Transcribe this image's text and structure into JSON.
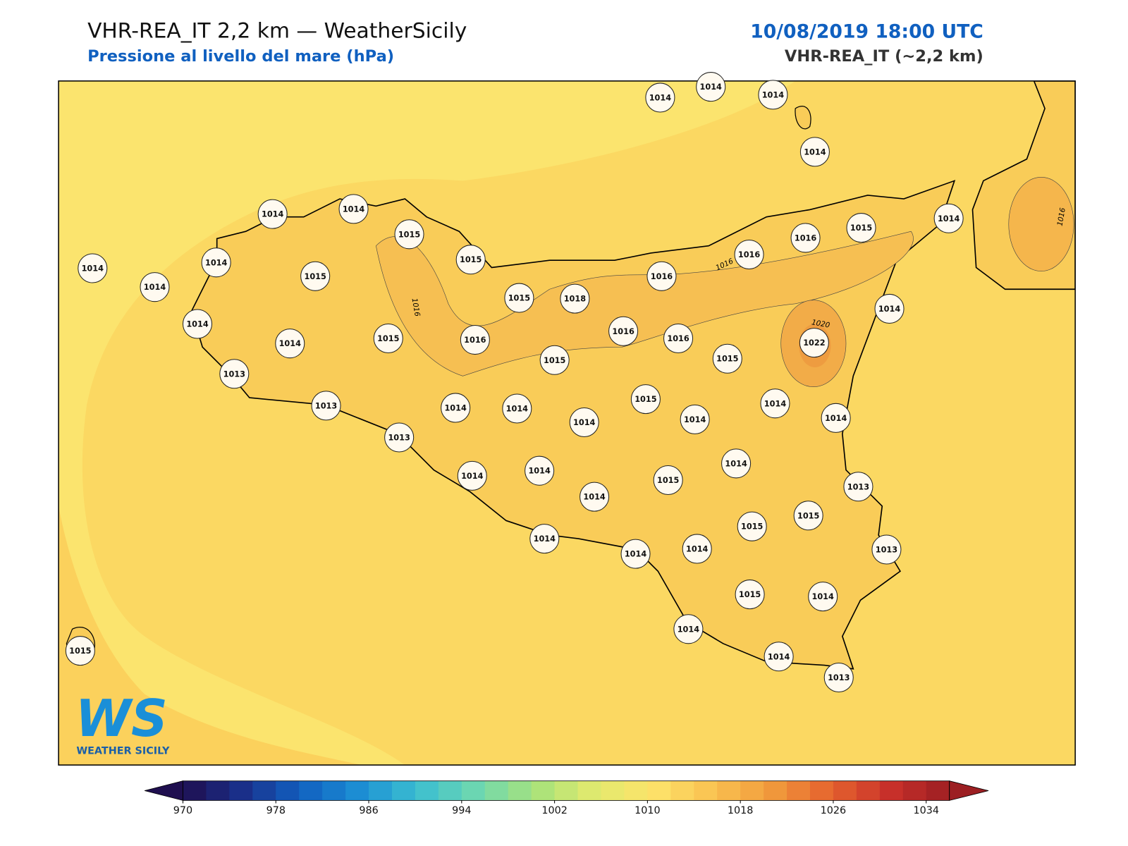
{
  "header": {
    "title": "VHR-REA_IT 2,2 km — WeatherSicily",
    "subtitle": "Pressione al livello del mare (hPa)",
    "datetime": "10/08/2019 18:00 UTC",
    "model": "VHR-REA_IT (~2,2 km)"
  },
  "stations": [
    1014,
    1014,
    1014,
    1014,
    1014,
    1014,
    1015,
    1015,
    1014,
    1014,
    1014,
    1015,
    1014,
    1014,
    1013,
    1015,
    1016,
    1015,
    1018,
    1016,
    1015,
    1016,
    1016,
    1016,
    1015,
    1014,
    1014,
    1016,
    1015,
    1022,
    1014,
    1014,
    1013,
    1013,
    1014,
    1014,
    1014,
    1015,
    1014,
    1014,
    1014,
    1014,
    1014,
    1015,
    1013,
    1015,
    1015,
    1013,
    1014,
    1014,
    1014,
    1015,
    1014,
    1014,
    1014,
    1013,
    1015
  ],
  "contour_labels": [
    1016,
    1016,
    1020,
    1016
  ],
  "colorbar": {
    "lim": [
      970,
      1036
    ],
    "ticks": [
      970,
      978,
      986,
      994,
      1002,
      1010,
      1018,
      1026,
      1034
    ],
    "colors": [
      "#1f0f4f",
      "#1a2f8a",
      "#1160c0",
      "#1c8fd4",
      "#3cbfd0",
      "#6fd8b0",
      "#a8e27a",
      "#e3ea6e",
      "#fde36a",
      "#f9c150",
      "#f19a3c",
      "#e5622e",
      "#c8302a",
      "#9c1f22"
    ]
  },
  "logo": {
    "mark": "WS",
    "text": "WEATHER SICILY"
  }
}
